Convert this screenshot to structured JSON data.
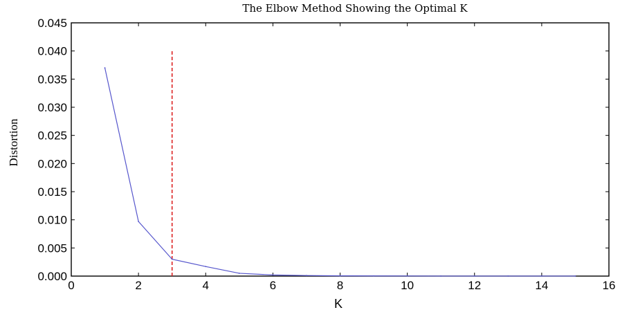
{
  "chart_data": {
    "type": "line",
    "title": "The Elbow Method Showing the Optimal K",
    "xlabel": "K",
    "ylabel": "Distortion",
    "xlim": [
      0,
      16
    ],
    "ylim": [
      0,
      0.045
    ],
    "xticks": [
      "0",
      "2",
      "4",
      "6",
      "8",
      "10",
      "12",
      "14",
      "16"
    ],
    "yticks": [
      "0.000",
      "0.005",
      "0.010",
      "0.015",
      "0.020",
      "0.025",
      "0.030",
      "0.035",
      "0.040",
      "0.045"
    ],
    "grid": false,
    "series": [
      {
        "color": "#5555cc",
        "x": [
          1,
          2,
          3,
          4,
          5,
          6,
          7,
          8,
          9,
          10,
          11,
          12,
          13,
          14,
          15
        ],
        "y": [
          0.037,
          0.0097,
          0.003,
          0.0017,
          0.0005,
          0.0002,
          0.0001,
          5e-05,
          3e-05,
          2e-05,
          1e-05,
          1e-05,
          1e-05,
          1e-05,
          1e-05
        ]
      }
    ],
    "vline": {
      "x": 3,
      "y_top": 0.04,
      "color": "#dd2222",
      "style": "dashed"
    }
  }
}
